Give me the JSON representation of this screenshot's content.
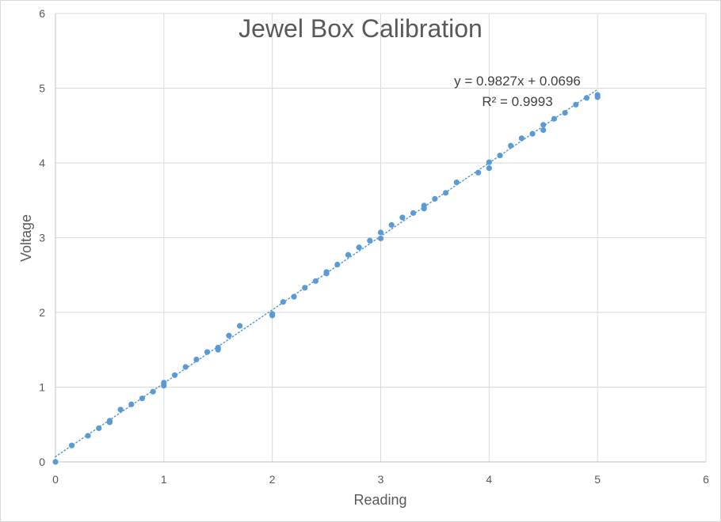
{
  "chart_data": {
    "type": "scatter",
    "title": "Jewel Box Calibration",
    "xlabel": "Reading",
    "ylabel": "Voltage",
    "xlim": [
      0,
      6
    ],
    "ylim": [
      0,
      6
    ],
    "x_ticks": [
      "0",
      "1",
      "2",
      "3",
      "4",
      "5",
      "6"
    ],
    "y_ticks": [
      "0",
      "1",
      "2",
      "3",
      "4",
      "5",
      "6"
    ],
    "grid": true,
    "colors": {
      "marker": "#5b9bd5",
      "trendline": "#5b9bd5"
    },
    "series": [
      {
        "points": [
          [
            0,
            0
          ],
          [
            0.15,
            0.22
          ],
          [
            0.3,
            0.35
          ],
          [
            0.4,
            0.45
          ],
          [
            0.5,
            0.53
          ],
          [
            0.5,
            0.55
          ],
          [
            0.6,
            0.7
          ],
          [
            0.7,
            0.77
          ],
          [
            0.8,
            0.85
          ],
          [
            0.9,
            0.94
          ],
          [
            1.0,
            1.02
          ],
          [
            1.0,
            1.06
          ],
          [
            1.1,
            1.16
          ],
          [
            1.2,
            1.27
          ],
          [
            1.3,
            1.37
          ],
          [
            1.4,
            1.47
          ],
          [
            1.5,
            1.5
          ],
          [
            1.5,
            1.53
          ],
          [
            1.6,
            1.69
          ],
          [
            1.7,
            1.82
          ],
          [
            2.0,
            1.96
          ],
          [
            2.0,
            1.98
          ],
          [
            2.1,
            2.14
          ],
          [
            2.2,
            2.21
          ],
          [
            2.3,
            2.33
          ],
          [
            2.4,
            2.42
          ],
          [
            2.5,
            2.52
          ],
          [
            2.5,
            2.54
          ],
          [
            2.6,
            2.64
          ],
          [
            2.7,
            2.77
          ],
          [
            2.8,
            2.87
          ],
          [
            2.9,
            2.96
          ],
          [
            3.0,
            2.99
          ],
          [
            3.0,
            3.07
          ],
          [
            3.1,
            3.17
          ],
          [
            3.2,
            3.27
          ],
          [
            3.3,
            3.33
          ],
          [
            3.4,
            3.39
          ],
          [
            3.4,
            3.43
          ],
          [
            3.5,
            3.52
          ],
          [
            3.6,
            3.6
          ],
          [
            3.7,
            3.74
          ],
          [
            3.9,
            3.87
          ],
          [
            4.0,
            3.93
          ],
          [
            4.0,
            4.01
          ],
          [
            4.1,
            4.1
          ],
          [
            4.2,
            4.23
          ],
          [
            4.3,
            4.33
          ],
          [
            4.4,
            4.39
          ],
          [
            4.5,
            4.44
          ],
          [
            4.5,
            4.51
          ],
          [
            4.6,
            4.59
          ],
          [
            4.7,
            4.67
          ],
          [
            4.8,
            4.78
          ],
          [
            4.9,
            4.87
          ],
          [
            5.0,
            4.88
          ],
          [
            5.0,
            4.91
          ]
        ]
      }
    ],
    "trendline": {
      "type": "linear",
      "slope": 0.9827,
      "intercept": 0.0696,
      "x_range": [
        0,
        5
      ],
      "equation_label": "y = 0.9827x + 0.0696",
      "r2_label": "R² = 0.9993"
    }
  }
}
